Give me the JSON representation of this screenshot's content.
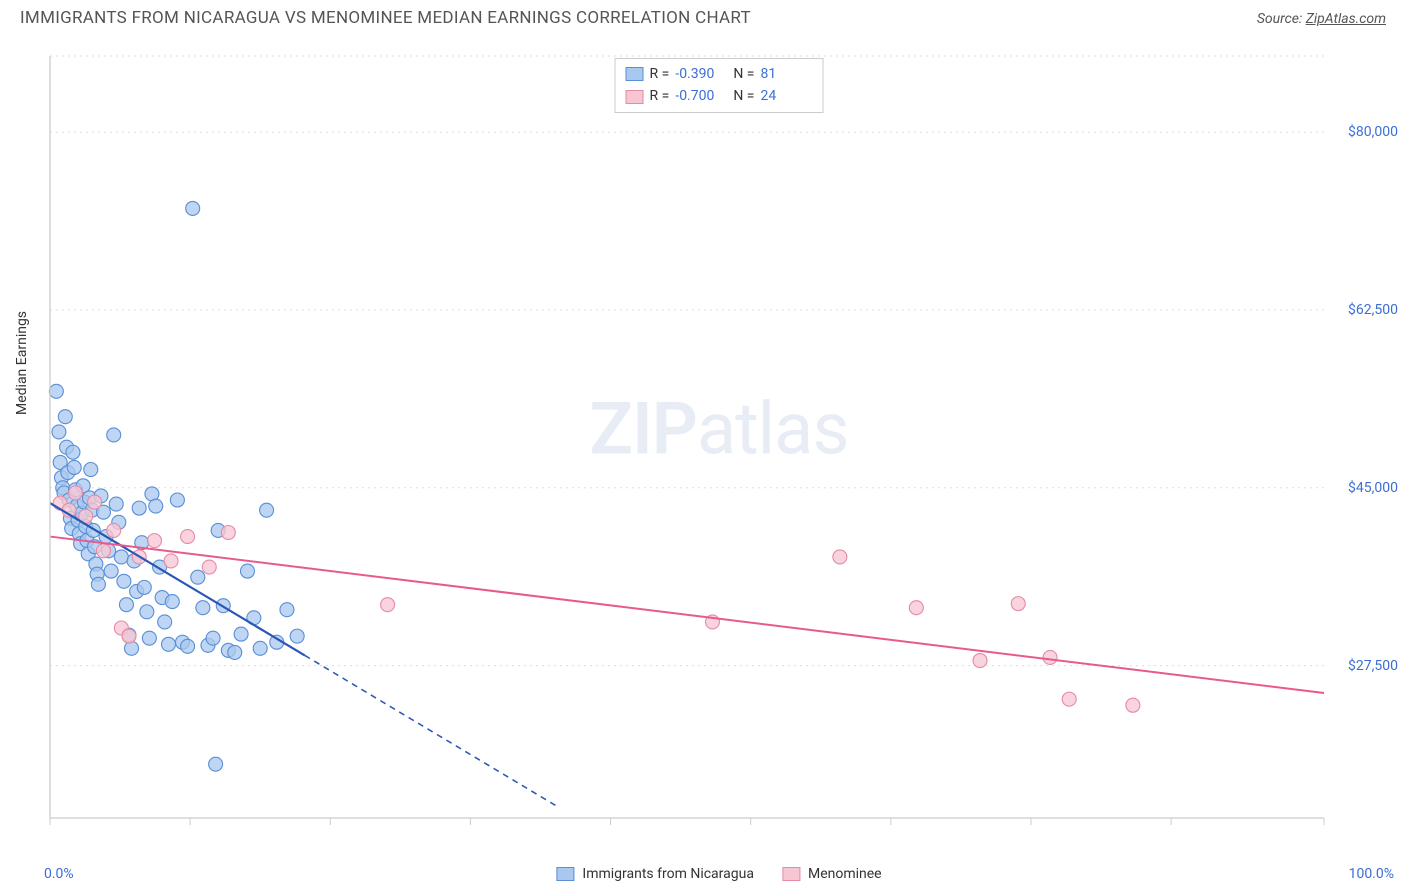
{
  "header": {
    "title": "IMMIGRANTS FROM NICARAGUA VS MENOMINEE MEDIAN EARNINGS CORRELATION CHART",
    "source_prefix": "Source: ",
    "source_link": "ZipAtlas.com"
  },
  "watermark": {
    "zip": "ZIP",
    "atlas": "atlas"
  },
  "chart": {
    "type": "scatter-with-regression",
    "background_color": "#ffffff",
    "plot_border_color": "#cccccc",
    "grid_color": "#dddddd",
    "grid_dash": "2,4",
    "axis_text_color": "#3b6fd6",
    "label_text_color": "#333333",
    "ylabel": "Median Earnings",
    "x": {
      "min": 0,
      "max": 100,
      "label_min": "0.0%",
      "label_max": "100.0%",
      "ticks": [
        0,
        11,
        22,
        33,
        44,
        55,
        66,
        77,
        88,
        100
      ]
    },
    "y": {
      "min": 12500,
      "max": 87500,
      "ticks": [
        27500,
        45000,
        62500,
        80000
      ],
      "tick_labels": [
        "$27,500",
        "$45,000",
        "$62,500",
        "$80,000"
      ]
    },
    "series": [
      {
        "id": "nicaragua",
        "label": "Immigrants from Nicaragua",
        "R": "-0.390",
        "N": "81",
        "marker": {
          "fill": "#a8c8ef",
          "stroke": "#5a8ed6",
          "r": 7,
          "opacity": 0.75
        },
        "line": {
          "color": "#2a56b5",
          "width": 2.2,
          "dash_extrapolate": "6,5",
          "x1": 0,
          "y1": 43500,
          "x2_solid": 20,
          "y2_solid": 28500,
          "x2_dash": 40,
          "y2_dash": 13500
        },
        "points": [
          [
            0.5,
            54500
          ],
          [
            0.7,
            50500
          ],
          [
            0.8,
            47500
          ],
          [
            0.9,
            46000
          ],
          [
            1.0,
            45000
          ],
          [
            1.1,
            44500
          ],
          [
            1.2,
            52000
          ],
          [
            1.3,
            49000
          ],
          [
            1.4,
            46500
          ],
          [
            1.5,
            43800
          ],
          [
            1.6,
            42000
          ],
          [
            1.7,
            41000
          ],
          [
            1.8,
            48500
          ],
          [
            1.9,
            47000
          ],
          [
            2.0,
            44800
          ],
          [
            2.1,
            43200
          ],
          [
            2.2,
            41800
          ],
          [
            2.3,
            40500
          ],
          [
            2.4,
            39500
          ],
          [
            2.5,
            42500
          ],
          [
            2.6,
            45200
          ],
          [
            2.7,
            43600
          ],
          [
            2.8,
            41200
          ],
          [
            2.9,
            39800
          ],
          [
            3.0,
            38500
          ],
          [
            3.1,
            44000
          ],
          [
            3.2,
            46800
          ],
          [
            3.3,
            42800
          ],
          [
            3.4,
            40800
          ],
          [
            3.5,
            39200
          ],
          [
            3.6,
            37500
          ],
          [
            3.7,
            36500
          ],
          [
            3.8,
            35500
          ],
          [
            4.0,
            44200
          ],
          [
            4.2,
            42600
          ],
          [
            4.4,
            40200
          ],
          [
            4.6,
            38800
          ],
          [
            4.8,
            36800
          ],
          [
            5.0,
            50200
          ],
          [
            5.2,
            43400
          ],
          [
            5.4,
            41600
          ],
          [
            5.6,
            38200
          ],
          [
            5.8,
            35800
          ],
          [
            6.0,
            33500
          ],
          [
            6.2,
            30500
          ],
          [
            6.4,
            29200
          ],
          [
            6.6,
            37800
          ],
          [
            6.8,
            34800
          ],
          [
            7.0,
            43000
          ],
          [
            7.2,
            39600
          ],
          [
            7.4,
            35200
          ],
          [
            7.6,
            32800
          ],
          [
            7.8,
            30200
          ],
          [
            8.0,
            44400
          ],
          [
            8.3,
            43200
          ],
          [
            8.6,
            37200
          ],
          [
            8.8,
            34200
          ],
          [
            9.0,
            31800
          ],
          [
            9.3,
            29600
          ],
          [
            9.6,
            33800
          ],
          [
            10.0,
            43800
          ],
          [
            10.4,
            29800
          ],
          [
            10.8,
            29400
          ],
          [
            11.2,
            72500
          ],
          [
            11.6,
            36200
          ],
          [
            12.0,
            33200
          ],
          [
            12.4,
            29500
          ],
          [
            12.8,
            30200
          ],
          [
            13.2,
            40800
          ],
          [
            13.6,
            33400
          ],
          [
            14.0,
            29000
          ],
          [
            14.5,
            28800
          ],
          [
            15.0,
            30600
          ],
          [
            15.5,
            36800
          ],
          [
            16.0,
            32200
          ],
          [
            16.5,
            29200
          ],
          [
            17.0,
            42800
          ],
          [
            17.8,
            29800
          ],
          [
            18.6,
            33000
          ],
          [
            19.4,
            30400
          ],
          [
            13.0,
            17800
          ]
        ]
      },
      {
        "id": "menominee",
        "label": "Menominee",
        "R": "-0.700",
        "N": "24",
        "marker": {
          "fill": "#f7c6d3",
          "stroke": "#e68aa6",
          "r": 7,
          "opacity": 0.78
        },
        "line": {
          "color": "#e85a8a",
          "width": 2.0,
          "x1": 0,
          "y1": 40200,
          "x2_solid": 100,
          "y2_solid": 24800
        },
        "points": [
          [
            0.8,
            43500
          ],
          [
            1.5,
            42800
          ],
          [
            2.0,
            44500
          ],
          [
            2.8,
            42200
          ],
          [
            3.5,
            43600
          ],
          [
            4.2,
            38800
          ],
          [
            5.0,
            40800
          ],
          [
            5.6,
            31200
          ],
          [
            6.2,
            30400
          ],
          [
            7.0,
            38200
          ],
          [
            8.2,
            39800
          ],
          [
            9.5,
            37800
          ],
          [
            10.8,
            40200
          ],
          [
            12.5,
            37200
          ],
          [
            14.0,
            40600
          ],
          [
            26.5,
            33500
          ],
          [
            52.0,
            31800
          ],
          [
            62.0,
            38200
          ],
          [
            68.0,
            33200
          ],
          [
            73.0,
            28000
          ],
          [
            76.0,
            33600
          ],
          [
            78.5,
            28300
          ],
          [
            80.0,
            24200
          ],
          [
            85.0,
            23600
          ]
        ]
      }
    ],
    "legend_top": {
      "R_label": "R =",
      "N_label": "N ="
    },
    "legend_bottom": true
  }
}
